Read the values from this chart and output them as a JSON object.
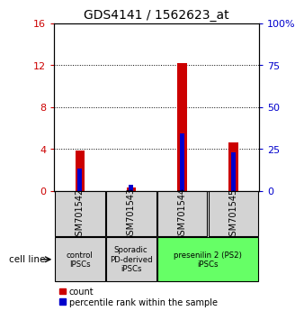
{
  "title": "GDS4141 / 1562623_at",
  "categories": [
    "GSM701542",
    "GSM701543",
    "GSM701544",
    "GSM701545"
  ],
  "red_values": [
    3.8,
    0.3,
    12.2,
    4.6
  ],
  "blue_values": [
    13.0,
    3.5,
    34.0,
    23.0
  ],
  "ylim_left": [
    0,
    16
  ],
  "ylim_right": [
    0,
    100
  ],
  "yticks_left": [
    0,
    4,
    8,
    12,
    16
  ],
  "yticks_right": [
    0,
    25,
    50,
    75,
    100
  ],
  "ytick_labels_right": [
    "0",
    "25",
    "50",
    "75",
    "100%"
  ],
  "legend_red": "count",
  "legend_blue": "percentile rank within the sample",
  "red_color": "#cc0000",
  "blue_color": "#0000cc",
  "title_fontsize": 10,
  "tick_fontsize": 8,
  "sample_box_color": "#d3d3d3",
  "group_info": [
    {
      "label": "control\nIPSCs",
      "color": "#d3d3d3",
      "cols": [
        0
      ]
    },
    {
      "label": "Sporadic\nPD-derived\niPSCs",
      "color": "#d3d3d3",
      "cols": [
        1
      ]
    },
    {
      "label": "presenilin 2 (PS2)\niPSCs",
      "color": "#66ff66",
      "cols": [
        2,
        3
      ]
    }
  ]
}
